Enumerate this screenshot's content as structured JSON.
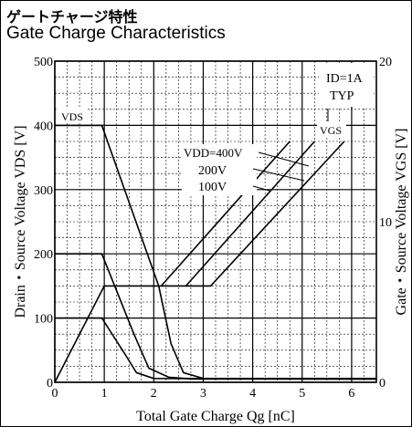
{
  "title_jp": "ゲートチャージ特性",
  "title_en": "Gate Charge Characteristics",
  "chart_data": {
    "type": "line",
    "xlabel": "Total Gate Charge  Qg [nC]",
    "ylabel_left": "Drain・Source Voltage  VDS [V]",
    "ylabel_right": "Gate・Source Voltage  VGS [V]",
    "xlim": [
      0,
      6.5
    ],
    "ylim_left": [
      0,
      500
    ],
    "ylim_right": [
      0,
      20
    ],
    "x_ticks": [
      "0",
      "1",
      "2",
      "3",
      "4",
      "5",
      "6"
    ],
    "y_left_ticks": [
      "0",
      "100",
      "200",
      "300",
      "400",
      "500"
    ],
    "y_right_ticks": [
      "0",
      "10",
      "20"
    ],
    "grid": true,
    "annotations": {
      "conditions": [
        "ID=1A",
        "TYP"
      ],
      "vds": "VDS",
      "vgs": "VGS",
      "vdd_labels": [
        "VDD=400V",
        "200V",
        "100V"
      ]
    },
    "series_vds": [
      {
        "label": "VDD=400V",
        "points": [
          [
            0,
            400
          ],
          [
            0.95,
            400
          ],
          [
            2.1,
            150
          ],
          [
            2.35,
            60
          ],
          [
            2.6,
            15
          ],
          [
            3.0,
            6
          ],
          [
            6.5,
            6
          ]
        ]
      },
      {
        "label": "200V",
        "points": [
          [
            0,
            200
          ],
          [
            0.95,
            200
          ],
          [
            1.6,
            75
          ],
          [
            1.9,
            22
          ],
          [
            2.3,
            8
          ],
          [
            2.8,
            5
          ],
          [
            6.5,
            5
          ]
        ]
      },
      {
        "label": "100V",
        "points": [
          [
            0,
            100
          ],
          [
            0.95,
            100
          ],
          [
            1.45,
            40
          ],
          [
            1.65,
            15
          ],
          [
            2.0,
            6
          ],
          [
            6.5,
            5
          ]
        ]
      }
    ],
    "series_vgs": [
      {
        "label": "VDD=400V",
        "points": [
          [
            0,
            0
          ],
          [
            1.0,
            6
          ],
          [
            3.15,
            6
          ],
          [
            5.85,
            15
          ]
        ]
      },
      {
        "label": "200V",
        "points": [
          [
            2.65,
            6
          ],
          [
            5.25,
            15
          ]
        ]
      },
      {
        "label": "100V",
        "points": [
          [
            2.15,
            6
          ],
          [
            4.75,
            15
          ]
        ]
      }
    ]
  }
}
